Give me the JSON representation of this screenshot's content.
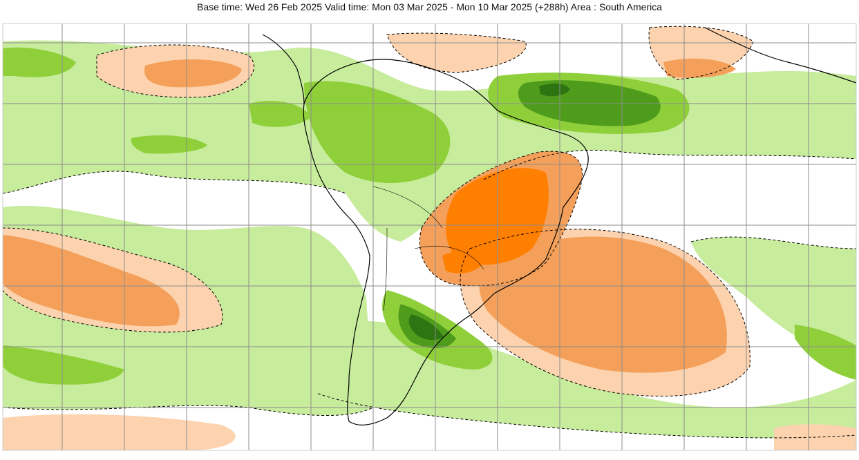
{
  "header": {
    "title": "Base time: Wed 26 Feb 2025 Valid time: Mon 03 Mar 2025 - Mon 10 Mar 2025 (+288h) Area : South America"
  },
  "map": {
    "area": "South America",
    "base_time": "Wed 26 Feb 2025",
    "valid_time": "Mon 03 Mar 2025 - Mon 10 Mar 2025",
    "lead_time": "+288h",
    "palette": {
      "dark_orange": "#ff7f00",
      "medium_orange": "#f5a05a",
      "light_orange": "#fcd3ae",
      "light_green": "#c7ec9c",
      "medium_green": "#8fcf3a",
      "dark_green": "#4f9c1c",
      "darkest_green": "#2f7412",
      "coastline": "#000000",
      "graticule": "#8c8c8c",
      "contour": "#000000"
    },
    "features": [
      "graticule",
      "coastline-south-america",
      "dashed-contours",
      "anomaly-shading"
    ]
  }
}
